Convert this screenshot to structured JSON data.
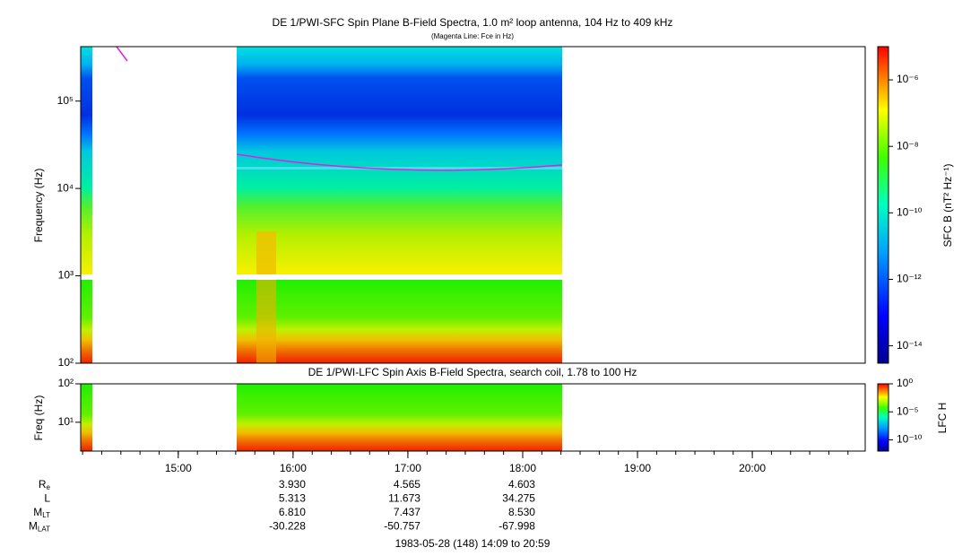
{
  "chart_data": [
    {
      "type": "spectrogram",
      "title": "DE 1/PWI-SFC  Spin Plane B-Field Spectra, 1.0 m² loop antenna, 104 Hz to 409 kHz",
      "subtitle": "(Magenta Line: Fce in Hz)",
      "y_label": "Frequency (Hz)",
      "ylim": [
        100,
        420000
      ],
      "yticks": [
        {
          "value": 100,
          "label": "10²"
        },
        {
          "value": 1000,
          "label": "10³"
        },
        {
          "value": 10000,
          "label": "10⁴"
        },
        {
          "value": 100000,
          "label": "10⁵"
        }
      ],
      "log_y": true,
      "colorbar_label": "SFC B (nT² Hz⁻¹)",
      "clim": [
        3e-15,
        1e-05
      ],
      "cticks": [
        {
          "value": 1e-14,
          "label": "10⁻¹⁴"
        },
        {
          "value": 1e-12,
          "label": "10⁻¹²"
        },
        {
          "value": 1e-10,
          "label": "10⁻¹⁰"
        },
        {
          "value": 1e-08,
          "label": "10⁻⁸"
        },
        {
          "value": 1e-06,
          "label": "10⁻⁶"
        }
      ]
    },
    {
      "type": "spectrogram",
      "title": "DE 1/PWI-LFC  Spin Axis B-Field Spectra, search coil, 1.78 to 100 Hz",
      "y_label": "Freq (Hz)",
      "ylim": [
        1.78,
        100
      ],
      "yticks": [
        {
          "value": 10,
          "label": "10¹"
        },
        {
          "value": 100,
          "label": "10²"
        }
      ],
      "log_y": true,
      "colorbar_label": "LFC H",
      "clim": [
        1e-12,
        1
      ],
      "cticks": [
        {
          "value": 1e-10,
          "label": "10⁻¹⁰"
        },
        {
          "value": 1e-05,
          "label": "10⁻⁵"
        },
        {
          "value": 1,
          "label": "10⁰"
        }
      ],
      "xlim": [
        "14:09",
        "20:59"
      ],
      "xticks": [
        "15:00",
        "16:00",
        "17:00",
        "18:00",
        "19:00",
        "20:00"
      ]
    }
  ],
  "ephemeris": {
    "rows": [
      {
        "label": {
          "main": "R",
          "sub": "e"
        },
        "values": [
          "3.930",
          "4.565",
          "4.603"
        ]
      },
      {
        "label": {
          "main": "L"
        },
        "values": [
          "5.313",
          "11.673",
          "34.275"
        ]
      },
      {
        "label": {
          "main": "M",
          "sub": "LT"
        },
        "values": [
          "6.810",
          "7.437",
          "8.530"
        ]
      },
      {
        "label": {
          "main": "M",
          "sub": "LAT"
        },
        "values": [
          "-30.228",
          "-50.757",
          "-67.998"
        ]
      }
    ],
    "footer": "1983-05-28 (148) 14:09 to 20:59"
  }
}
